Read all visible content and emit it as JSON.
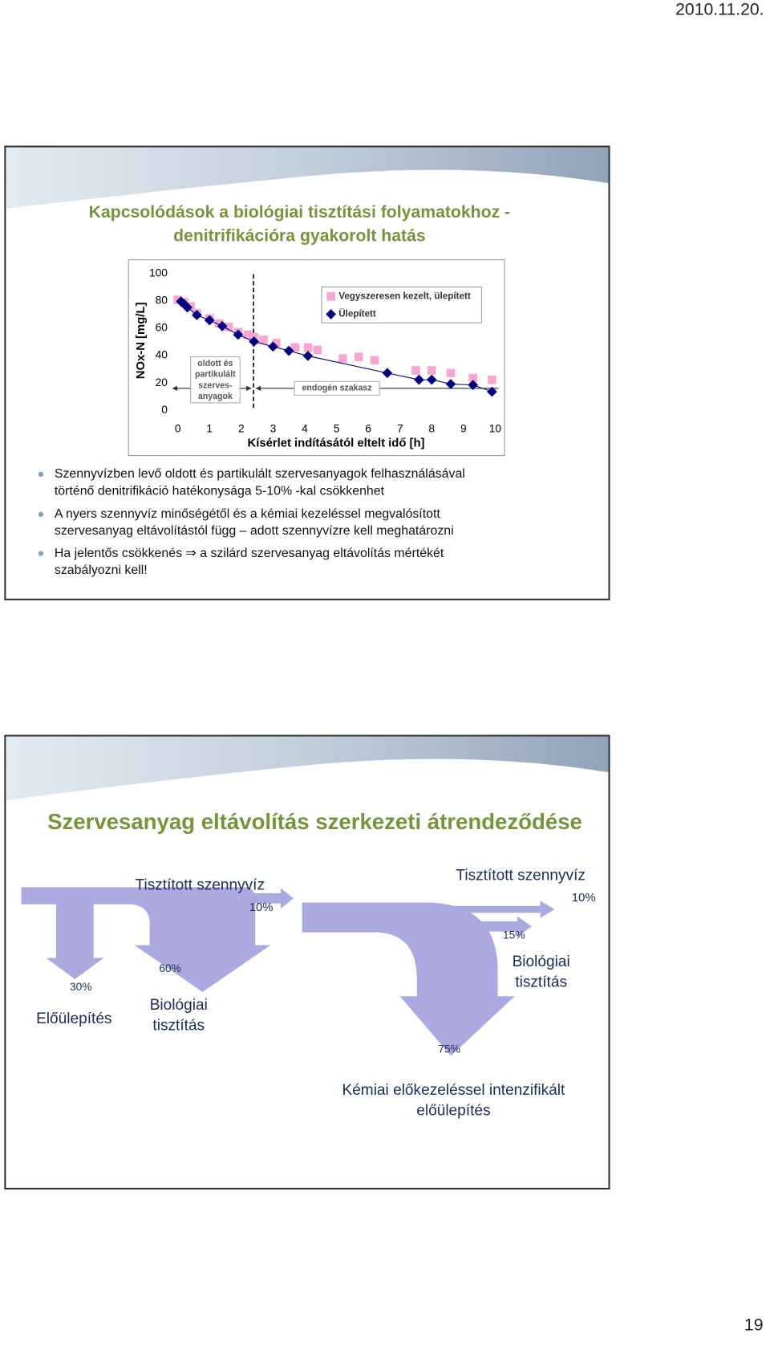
{
  "header": {
    "date": "2010.11.20."
  },
  "slide1": {
    "title": [
      "Kapcsolódások a biológiai tisztítási folyamatokhoz -",
      "denitrifikációra gyakorolt hatás"
    ],
    "bullets": [
      [
        "Szennyvízben levő oldott és partikulált szervesanyagok felhasználásával",
        "történő denitrifikáció hatékonysága 5-10% -kal csökkenhet"
      ],
      [
        "A nyers szennyvíz minőségétől és a kémiai kezeléssel megvalósított",
        "szervesanyag eltávolítástól függ – adott szennyvízre kell meghatározni"
      ],
      [
        "Ha jelentős csökkenés ⇒ a szilárd szervesanyag eltávolítás mértékét",
        "szabályozni kell!"
      ]
    ]
  },
  "chart_data": {
    "type": "scatter",
    "xlabel": "Kísérlet indításától eltelt idő [h]",
    "ylabel": "NOx-N [mg/L]",
    "xlim": [
      0,
      10
    ],
    "xticks": [
      0,
      1,
      2,
      3,
      4,
      5,
      6,
      7,
      8,
      9,
      10
    ],
    "ylim": [
      0,
      100
    ],
    "yticks": [
      0,
      20,
      40,
      60,
      80,
      100
    ],
    "annotations": [
      [
        "oldott és",
        "partikulált",
        "szerves-",
        "anyagok"
      ],
      [
        "endogén szakasz"
      ]
    ],
    "series": [
      {
        "name": "Vegyszeresen kezelt, ülepített",
        "color": "#f7a6cf",
        "marker": "square",
        "line": false,
        "x": [
          0,
          0.2,
          0.4,
          0.6,
          1.0,
          1.3,
          1.6,
          1.9,
          2.2,
          2.4,
          2.7,
          3.1,
          3.7,
          4.1,
          4.4,
          5.2,
          5.7,
          6.2,
          7.5,
          8.0,
          8.6,
          9.3,
          9.9
        ],
        "y": [
          80.7,
          78.9,
          75.8,
          70.8,
          67.1,
          63.4,
          60.9,
          57.1,
          55.3,
          53.4,
          51.6,
          49.1,
          46.0,
          46.0,
          44.1,
          37.9,
          39.1,
          36.6,
          29.2,
          29.2,
          27.3,
          23.6,
          22.4
        ]
      },
      {
        "name": "Ülepített",
        "color": "#000080",
        "marker": "diamond",
        "line": true,
        "x": [
          0.1,
          0.2,
          0.3,
          0.6,
          1.0,
          1.4,
          1.9,
          2.4,
          3.0,
          3.5,
          4.1,
          6.6,
          7.6,
          8.0,
          8.6,
          9.3,
          9.9
        ],
        "y": [
          79.5,
          77.6,
          75.2,
          69.6,
          65.8,
          61.5,
          55.3,
          50.3,
          46.6,
          43.5,
          39.8,
          27.3,
          22.4,
          22.4,
          19.3,
          18.6,
          13.7
        ]
      }
    ]
  },
  "slide2": {
    "title": "Szervesanyag eltávolítás szerkezeti átrendeződése",
    "labels": [
      [
        "Tisztított szennyvíz"
      ],
      [
        "10%"
      ],
      [
        "30%"
      ],
      [
        "60%"
      ],
      [
        "Előülepítés"
      ],
      [
        "Biológiai",
        "tisztítás"
      ],
      [
        "Tisztított szennyvíz"
      ],
      [
        "10%"
      ],
      [
        "15%"
      ],
      [
        "Biológiai",
        "tisztítás"
      ],
      [
        "75%"
      ],
      [
        "Kémiai előkezeléssel intenzifikált",
        "előülepítés"
      ]
    ]
  },
  "footer": {
    "page": "19"
  }
}
